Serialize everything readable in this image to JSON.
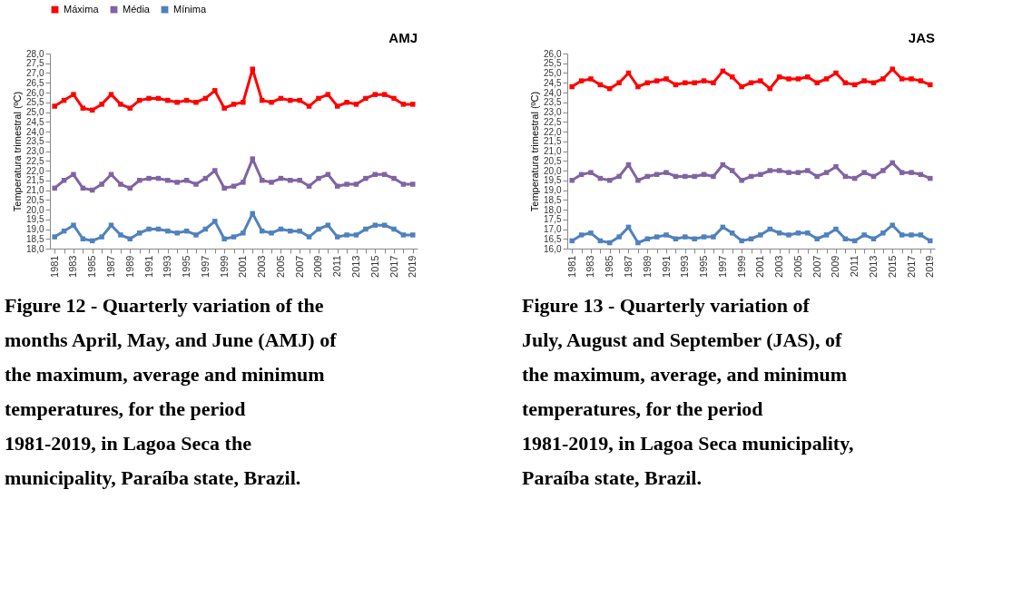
{
  "chart_data": [
    {
      "type": "line",
      "title": "AMJ",
      "ylabel": "Temperatura trimestral (ºC)",
      "categories": [
        "1981",
        null,
        "1983",
        null,
        "1985",
        null,
        "1987",
        null,
        "1989",
        null,
        "1991",
        null,
        "1993",
        null,
        "1995",
        null,
        "1997",
        null,
        "1999",
        null,
        "2001",
        null,
        "2003",
        null,
        "2005",
        null,
        "2007",
        null,
        "2009",
        null,
        "2011",
        null,
        "2013",
        null,
        "2015",
        null,
        "2017",
        null,
        "2019"
      ],
      "series": [
        {
          "name": "Máxima",
          "color": "#ff0000",
          "values": [
            25.3,
            25.6,
            25.9,
            25.2,
            25.1,
            25.4,
            25.9,
            25.4,
            25.2,
            25.6,
            25.7,
            25.7,
            25.6,
            25.5,
            25.6,
            25.5,
            25.7,
            26.1,
            25.2,
            25.4,
            25.5,
            27.2,
            25.6,
            25.5,
            25.7,
            25.6,
            25.6,
            25.3,
            25.7,
            25.9,
            25.3,
            25.5,
            25.4,
            25.7,
            25.9,
            25.9,
            25.7,
            25.4,
            25.4
          ]
        },
        {
          "name": "Média",
          "color": "#8064a2",
          "values": [
            21.1,
            21.5,
            21.8,
            21.1,
            21.0,
            21.3,
            21.8,
            21.3,
            21.1,
            21.5,
            21.6,
            21.6,
            21.5,
            21.4,
            21.5,
            21.3,
            21.6,
            22.0,
            21.1,
            21.2,
            21.4,
            22.6,
            21.5,
            21.4,
            21.6,
            21.5,
            21.5,
            21.2,
            21.6,
            21.8,
            21.2,
            21.3,
            21.3,
            21.6,
            21.8,
            21.8,
            21.6,
            21.3,
            21.3
          ]
        },
        {
          "name": "Mínima",
          "color": "#4f81bd",
          "values": [
            18.6,
            18.9,
            19.2,
            18.5,
            18.4,
            18.6,
            19.2,
            18.7,
            18.5,
            18.8,
            19.0,
            19.0,
            18.9,
            18.8,
            18.9,
            18.7,
            19.0,
            19.4,
            18.5,
            18.6,
            18.8,
            19.8,
            18.9,
            18.8,
            19.0,
            18.9,
            18.9,
            18.6,
            19.0,
            19.2,
            18.6,
            18.7,
            18.7,
            19.0,
            19.2,
            19.2,
            19.0,
            18.7,
            18.7
          ]
        }
      ],
      "ylim": [
        18,
        28
      ],
      "yticks": [
        {
          "value": 18,
          "label": "18,0"
        },
        {
          "value": 18.5,
          "label": "18,5"
        },
        {
          "value": 19,
          "label": "19,0"
        },
        {
          "value": 19.5,
          "label": "19,5"
        },
        {
          "value": 20,
          "label": "20,0"
        },
        {
          "value": 20.5,
          "label": "20,5"
        },
        {
          "value": 21,
          "label": "21,0"
        },
        {
          "value": 21.5,
          "label": "21,5"
        },
        {
          "value": 22,
          "label": "22,0"
        },
        {
          "value": 22.5,
          "label": "22,5"
        },
        {
          "value": 23,
          "label": "23,0"
        },
        {
          "value": 23.5,
          "label": "23,5"
        },
        {
          "value": 24,
          "label": "24,0"
        },
        {
          "value": 24.5,
          "label": "24,5"
        },
        {
          "value": 25,
          "label": "25,0"
        },
        {
          "value": 25.5,
          "label": "25,5"
        },
        {
          "value": 26,
          "label": "26,0"
        },
        {
          "value": 26.5,
          "label": "26,5"
        },
        {
          "value": 27,
          "label": "27,0"
        },
        {
          "value": 27.5,
          "label": "27,5"
        },
        {
          "value": 28,
          "label": "28,0"
        }
      ],
      "grid": false,
      "legend": "top",
      "marker": "square",
      "line_style": "solid",
      "annotations": [
        "Figure 12 - Quarterly variation of the months April, May, and June (AMJ) of the maximum, average and minimum temperatures, for the period 1981-2019, in Lagoa Seca the municipality, Paraíba state, Brazil."
      ]
    },
    {
      "type": "line",
      "title": "JAS",
      "ylabel": "Temperatura trimestral (ºC)",
      "categories": [
        "1981",
        null,
        "1983",
        null,
        "1985",
        null,
        "1987",
        null,
        "1989",
        null,
        "1991",
        null,
        "1993",
        null,
        "1995",
        null,
        "1997",
        null,
        "1999",
        null,
        "2001",
        null,
        "2003",
        null,
        "2005",
        null,
        "2007",
        null,
        "2009",
        null,
        "2011",
        null,
        "2013",
        null,
        "2015",
        null,
        "2017",
        null,
        "2019"
      ],
      "series": [
        {
          "name": "Máxima",
          "color": "#ff0000",
          "values": [
            24.3,
            24.6,
            24.7,
            24.4,
            24.2,
            24.5,
            25.0,
            24.3,
            24.5,
            24.6,
            24.7,
            24.4,
            24.5,
            24.5,
            24.6,
            24.5,
            25.1,
            24.8,
            24.3,
            24.5,
            24.6,
            24.2,
            24.8,
            24.7,
            24.7,
            24.8,
            24.5,
            24.7,
            25.0,
            24.5,
            24.4,
            24.6,
            24.5,
            24.7,
            25.2,
            24.7,
            24.7,
            24.6,
            24.4
          ]
        },
        {
          "name": "Média",
          "color": "#8064a2",
          "values": [
            19.5,
            19.8,
            19.9,
            19.6,
            19.5,
            19.7,
            20.3,
            19.5,
            19.7,
            19.8,
            19.9,
            19.7,
            19.7,
            19.7,
            19.8,
            19.7,
            20.3,
            20.0,
            19.5,
            19.7,
            19.8,
            20.0,
            20.0,
            19.9,
            19.9,
            20.0,
            19.7,
            19.9,
            20.2,
            19.7,
            19.6,
            19.9,
            19.7,
            20.0,
            20.4,
            19.9,
            19.9,
            19.8,
            19.6
          ]
        },
        {
          "name": "Mínima",
          "color": "#4f81bd",
          "values": [
            16.4,
            16.7,
            16.8,
            16.4,
            16.3,
            16.6,
            17.1,
            16.3,
            16.5,
            16.6,
            16.7,
            16.5,
            16.6,
            16.5,
            16.6,
            16.6,
            17.1,
            16.8,
            16.4,
            16.5,
            16.7,
            17.0,
            16.8,
            16.7,
            16.8,
            16.8,
            16.5,
            16.7,
            17.0,
            16.5,
            16.4,
            16.7,
            16.5,
            16.8,
            17.2,
            16.7,
            16.7,
            16.7,
            16.4
          ]
        }
      ],
      "ylim": [
        16,
        26
      ],
      "yticks": [
        {
          "value": 16,
          "label": "16,0"
        },
        {
          "value": 16.5,
          "label": "16,5"
        },
        {
          "value": 17,
          "label": "17,0"
        },
        {
          "value": 17.5,
          "label": "17,5"
        },
        {
          "value": 18,
          "label": "18,0"
        },
        {
          "value": 18.5,
          "label": "18,5"
        },
        {
          "value": 19,
          "label": "19,0"
        },
        {
          "value": 19.5,
          "label": "19,5"
        },
        {
          "value": 20,
          "label": "20,0"
        },
        {
          "value": 20.5,
          "label": "20,5"
        },
        {
          "value": 21,
          "label": "21,0"
        },
        {
          "value": 21.5,
          "label": "21,5"
        },
        {
          "value": 22,
          "label": "22,0"
        },
        {
          "value": 22.5,
          "label": "22,5"
        },
        {
          "value": 23,
          "label": "23,0"
        },
        {
          "value": 23.5,
          "label": "23,5"
        },
        {
          "value": 24,
          "label": "24,0"
        },
        {
          "value": 24.5,
          "label": "24,5"
        },
        {
          "value": 25,
          "label": "25,0"
        },
        {
          "value": 25.5,
          "label": "25,5"
        },
        {
          "value": 26,
          "label": "26,0"
        }
      ],
      "grid": false,
      "legend": "top",
      "marker": "square",
      "line_style": "solid",
      "annotations": [
        "Figure 13 - Quarterly variation of July, August and September (JAS), of the maximum, average, and minimum temperatures, for the period 1981-2019, in Lagoa Seca municipality, Paraíba state, Brazil."
      ]
    }
  ]
}
